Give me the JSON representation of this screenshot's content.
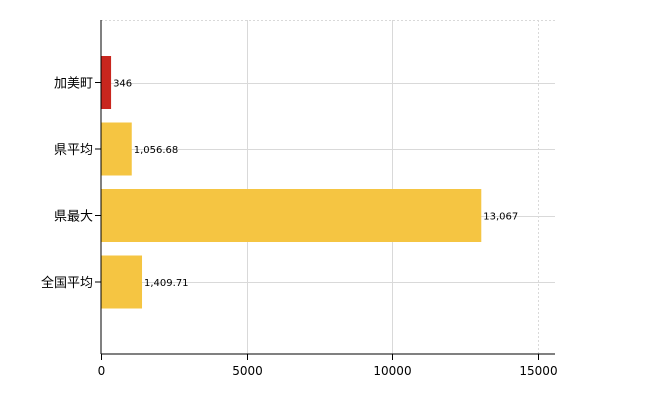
{
  "chart_data": {
    "type": "bar",
    "orientation": "horizontal",
    "categories": [
      "加美町",
      "県平均",
      "県最大",
      "全国平均"
    ],
    "values": [
      346,
      1056.68,
      13067,
      1409.71
    ],
    "value_labels": [
      "346",
      "1,056.68",
      "13,067",
      "1,409.71"
    ],
    "bar_colors": [
      "#c8261e",
      "#f5c542",
      "#f5c542",
      "#f5c542"
    ],
    "x_ticks": [
      "0",
      "5000",
      "10000",
      "15000"
    ],
    "x_tick_values": [
      0,
      5000,
      10000,
      15000
    ],
    "xlim": [
      0,
      15600
    ],
    "grid": true,
    "title": "",
    "xlabel": "",
    "ylabel": ""
  }
}
